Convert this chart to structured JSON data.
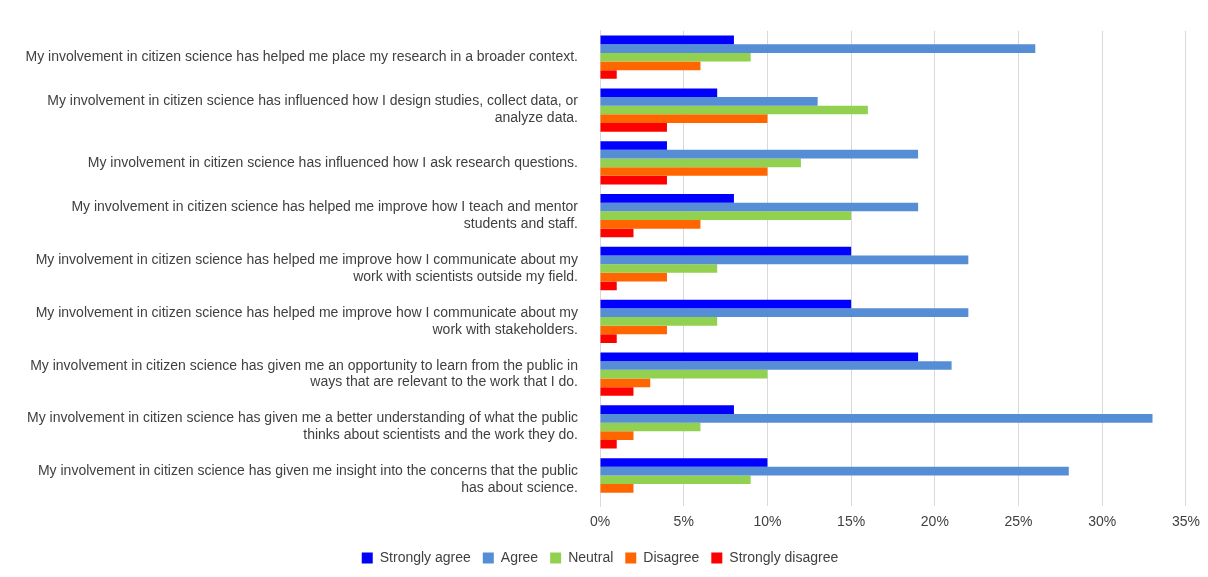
{
  "chart_data": {
    "type": "bar",
    "orientation": "horizontal",
    "categories": [
      "My involvement in citizen science has helped me place my research in a broader context.",
      "My involvement in citizen science has influenced how I design studies, collect data, or analyze data.",
      "My involvement in citizen science has influenced how I ask research questions.",
      "My involvement in citizen science has helped me improve how I teach and mentor students and staff.",
      "My involvement in citizen science has helped me improve how I communicate about my work with scientists outside my field.",
      "My involvement in citizen science has helped me improve how I communicate about my work with stakeholders.",
      "My involvement in citizen science has given me an opportunity to learn from the public in ways that are relevant to the work that I do.",
      "My involvement in citizen science has given me a better understanding of what the public thinks about scientists and the work they do.",
      "My involvement in citizen science has given me insight into the concerns that the public has about science."
    ],
    "series": [
      {
        "name": "Strongly agree",
        "color": "#0000ff",
        "values": [
          8,
          7,
          4,
          8,
          15,
          15,
          19,
          8,
          10
        ]
      },
      {
        "name": "Agree",
        "color": "#558ed5",
        "values": [
          26,
          13,
          19,
          19,
          22,
          22,
          21,
          33,
          28
        ]
      },
      {
        "name": "Neutral",
        "color": "#92d050",
        "values": [
          9,
          16,
          12,
          15,
          7,
          7,
          10,
          6,
          9
        ]
      },
      {
        "name": "Disagree",
        "color": "#ff6600",
        "values": [
          6,
          10,
          10,
          6,
          4,
          4,
          3,
          2,
          2
        ]
      },
      {
        "name": "Strongly disagree",
        "color": "#ff0000",
        "values": [
          1,
          4,
          4,
          2,
          1,
          1,
          2,
          1,
          0
        ]
      }
    ],
    "xlim": [
      0,
      35
    ],
    "xticks": [
      {
        "value": 0,
        "label": "0%"
      },
      {
        "value": 5,
        "label": "5%"
      },
      {
        "value": 10,
        "label": "10%"
      },
      {
        "value": 15,
        "label": "15%"
      },
      {
        "value": 20,
        "label": "20%"
      },
      {
        "value": 25,
        "label": "25%"
      },
      {
        "value": 30,
        "label": "30%"
      },
      {
        "value": 35,
        "label": "35%"
      }
    ],
    "grid": "x",
    "legend": "bottom"
  }
}
